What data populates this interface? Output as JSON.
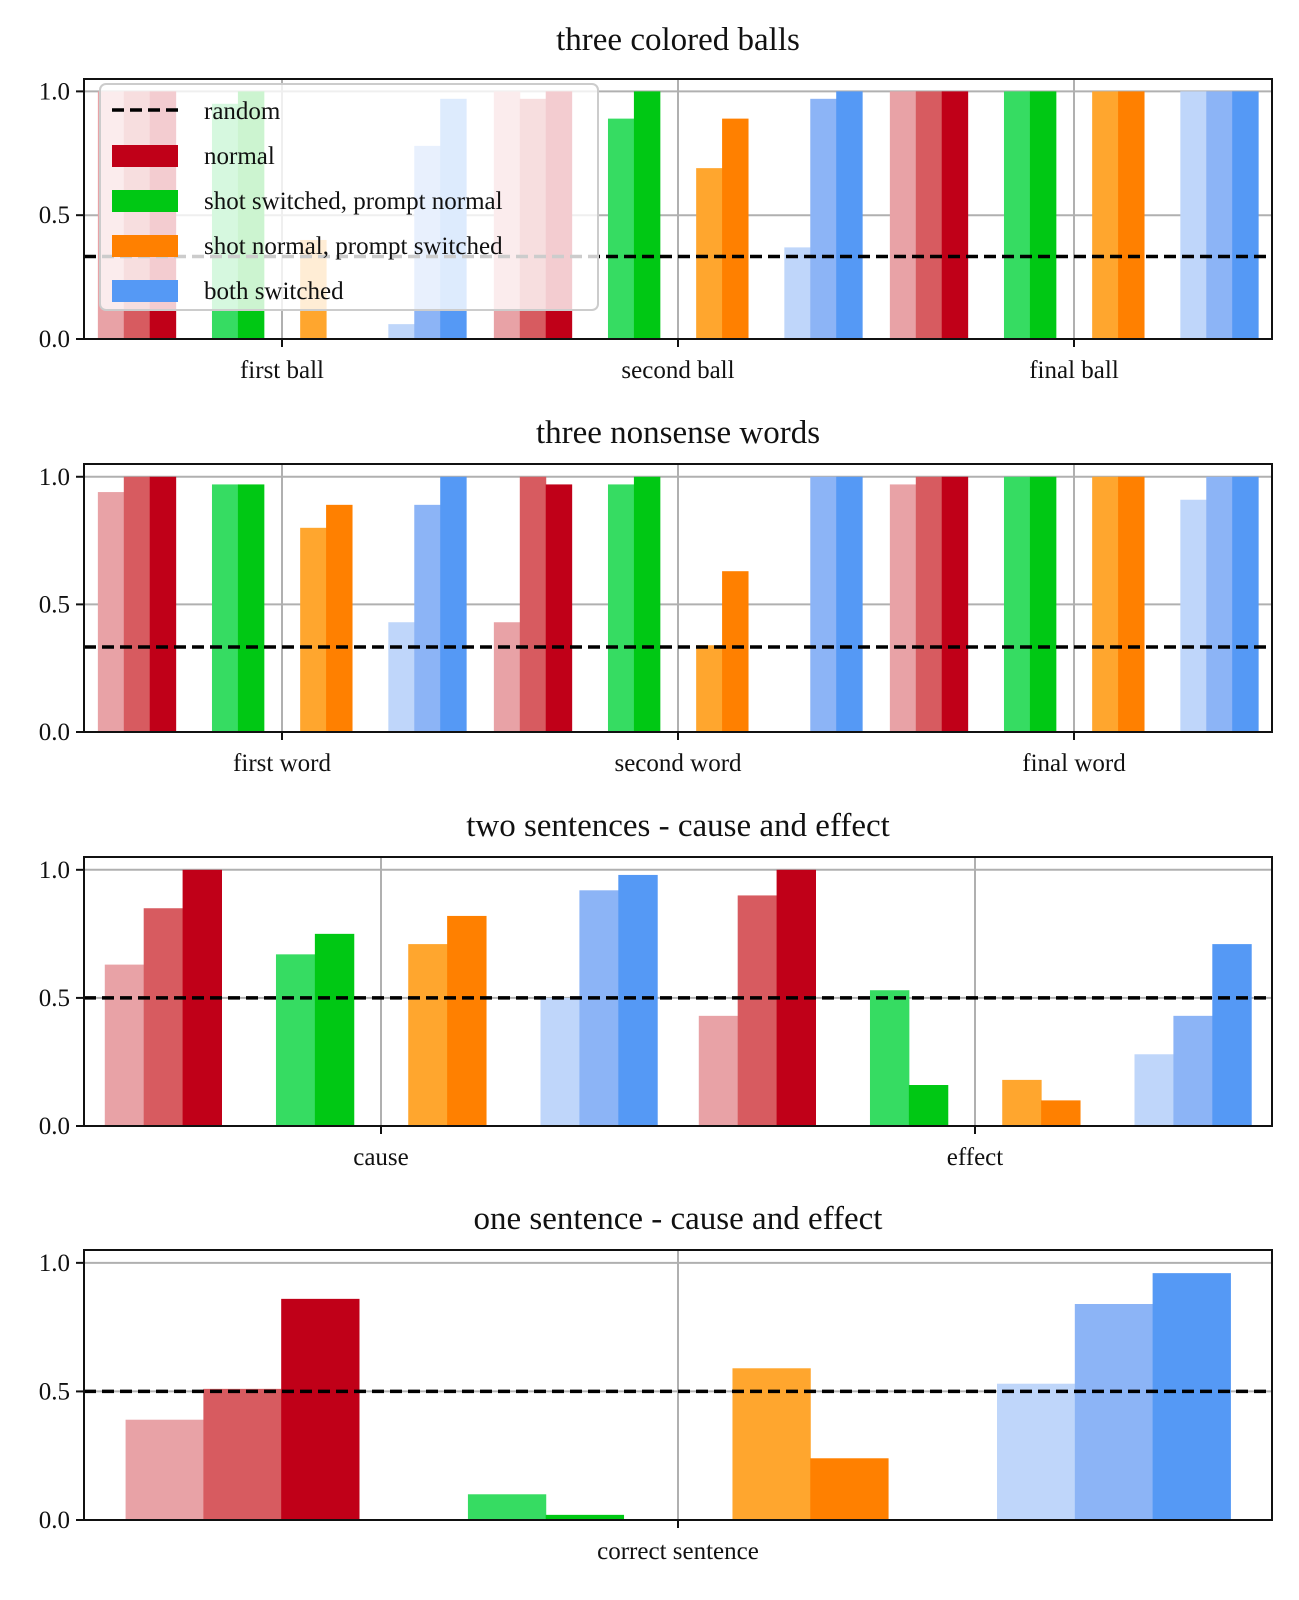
{
  "chart_data": [
    {
      "type": "bar",
      "title": "three colored balls",
      "categories": [
        "first ball",
        "second ball",
        "final ball"
      ],
      "ylim": [
        0,
        1.05
      ],
      "yticks": [
        "0.0",
        "0.5",
        "1.0"
      ],
      "ytick_values": [
        0,
        0.5,
        1.0
      ],
      "random_baseline": 0.333,
      "grid": true,
      "legend": {
        "placement": "top-left",
        "entries": [
          {
            "label": "random",
            "style": "dashed-line"
          },
          {
            "label": "normal",
            "color": "#c00018"
          },
          {
            "label": "shot switched, prompt normal",
            "color": "#00c814"
          },
          {
            "label": "shot normal, prompt switched",
            "color": "#ff8000"
          },
          {
            "label": "both switched",
            "color": "#5599f5"
          }
        ]
      },
      "series": [
        {
          "name": "normal",
          "values": [
            [
              1.0,
              1.0,
              1.0
            ],
            [
              1.0,
              0.97,
              1.0
            ],
            [
              1.0,
              1.0,
              1.0
            ]
          ]
        },
        {
          "name": "shot switched, prompt normal",
          "values": [
            [
              0.95,
              1.0
            ],
            [
              0.89,
              1.0
            ],
            [
              1.0,
              1.0
            ]
          ]
        },
        {
          "name": "shot normal, prompt switched",
          "values": [
            [
              0.4,
              0.0
            ],
            [
              0.69,
              0.89
            ],
            [
              1.0,
              1.0
            ]
          ]
        },
        {
          "name": "both switched",
          "values": [
            [
              0.06,
              0.78,
              0.97
            ],
            [
              0.37,
              0.97,
              1.0
            ],
            [
              1.0,
              1.0,
              1.0
            ]
          ]
        }
      ]
    },
    {
      "type": "bar",
      "title": "three nonsense words",
      "categories": [
        "first word",
        "second word",
        "final word"
      ],
      "ylim": [
        0,
        1.05
      ],
      "yticks": [
        "0.0",
        "0.5",
        "1.0"
      ],
      "ytick_values": [
        0,
        0.5,
        1.0
      ],
      "random_baseline": 0.333,
      "grid": true,
      "series": [
        {
          "name": "normal",
          "values": [
            [
              0.94,
              1.0,
              1.0
            ],
            [
              0.43,
              1.0,
              0.97
            ],
            [
              0.97,
              1.0,
              1.0
            ]
          ]
        },
        {
          "name": "shot switched, prompt normal",
          "values": [
            [
              0.97,
              0.97
            ],
            [
              0.97,
              1.0
            ],
            [
              1.0,
              1.0
            ]
          ]
        },
        {
          "name": "shot normal, prompt switched",
          "values": [
            [
              0.8,
              0.89
            ],
            [
              0.34,
              0.63
            ],
            [
              1.0,
              1.0
            ]
          ]
        },
        {
          "name": "both switched",
          "values": [
            [
              0.43,
              0.89,
              1.0
            ],
            [
              0.0,
              1.0,
              1.0
            ],
            [
              0.91,
              1.0,
              1.0
            ]
          ]
        }
      ]
    },
    {
      "type": "bar",
      "title": "two sentences - cause and effect",
      "categories": [
        "cause",
        "effect"
      ],
      "ylim": [
        0,
        1.05
      ],
      "yticks": [
        "0.0",
        "0.5",
        "1.0"
      ],
      "ytick_values": [
        0,
        0.5,
        1.0
      ],
      "random_baseline": 0.5,
      "grid": true,
      "series": [
        {
          "name": "normal",
          "values": [
            [
              0.63,
              0.85,
              1.0
            ],
            [
              0.43,
              0.9,
              1.0
            ]
          ]
        },
        {
          "name": "shot switched, prompt normal",
          "values": [
            [
              0.67,
              0.75
            ],
            [
              0.53,
              0.16
            ]
          ]
        },
        {
          "name": "shot normal, prompt switched",
          "values": [
            [
              0.71,
              0.82
            ],
            [
              0.18,
              0.1
            ]
          ]
        },
        {
          "name": "both switched",
          "values": [
            [
              0.5,
              0.92,
              0.98
            ],
            [
              0.28,
              0.43,
              0.71
            ]
          ]
        }
      ]
    },
    {
      "type": "bar",
      "title": "one sentence - cause and effect",
      "categories": [
        "correct sentence"
      ],
      "ylim": [
        0,
        1.05
      ],
      "yticks": [
        "0.0",
        "0.5",
        "1.0"
      ],
      "ytick_values": [
        0,
        0.5,
        1.0
      ],
      "random_baseline": 0.5,
      "grid": true,
      "series": [
        {
          "name": "normal",
          "values": [
            [
              0.39,
              0.51,
              0.86
            ]
          ]
        },
        {
          "name": "shot switched, prompt normal",
          "values": [
            [
              0.1,
              0.02
            ]
          ]
        },
        {
          "name": "shot normal, prompt switched",
          "values": [
            [
              0.59,
              0.24
            ]
          ]
        },
        {
          "name": "both switched",
          "values": [
            [
              0.53,
              0.84,
              0.96
            ]
          ]
        }
      ]
    }
  ],
  "palette": {
    "normal": [
      "#e8a2a6",
      "#d75b60",
      "#c00018"
    ],
    "shot switched, prompt normal": [
      "#36dc62",
      "#00c814"
    ],
    "shot normal, prompt switched": [
      "#ffa62e",
      "#ff8000"
    ],
    "both switched": [
      "#bfd6fa",
      "#8cb4f6",
      "#5599f5"
    ]
  }
}
